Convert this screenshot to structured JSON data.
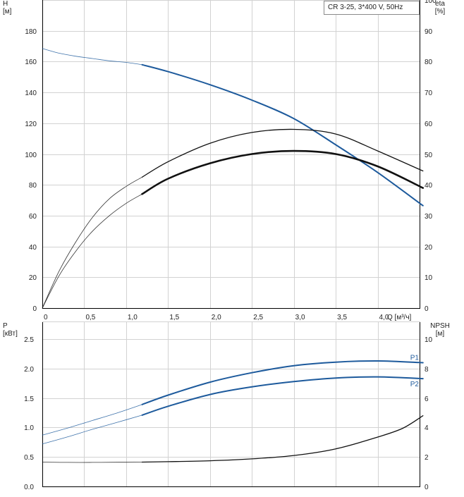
{
  "legend_box": "CR 3-25, 3*400 V, 50Hz",
  "colors": {
    "blue": "#1d5a9c",
    "black": "#111111",
    "grid": "#d2d2d2"
  },
  "chart_data": [
    {
      "type": "line",
      "xlabel": "Q [м³/ч]",
      "ylabel": "H [м]",
      "y2label": "eta [%]",
      "xlim": [
        0,
        4.5
      ],
      "ylim": [
        0,
        200
      ],
      "y2lim": [
        0,
        100
      ],
      "xticks": [
        "0",
        "0,5",
        "1,0",
        "1,5",
        "2,0",
        "2,5",
        "3,0",
        "3,5",
        "4,0"
      ],
      "yticks": [
        "0",
        "20",
        "40",
        "60",
        "80",
        "100",
        "120",
        "140",
        "160",
        "180"
      ],
      "y2ticks": [
        "0",
        "10",
        "20",
        "30",
        "40",
        "50",
        "60",
        "70",
        "80",
        "90",
        "100"
      ],
      "grid": true,
      "series": [
        {
          "color": "blue",
          "axis": "left",
          "thin": [
            [
              0,
              168.5
            ],
            [
              0.2,
              165.5
            ],
            [
              0.4,
              163.5
            ],
            [
              0.6,
              162
            ],
            [
              0.8,
              160.5
            ],
            [
              1.0,
              159.5
            ],
            [
              1.19,
              158
            ]
          ],
          "bold": [
            [
              1.19,
              158
            ],
            [
              1.5,
              153.5
            ],
            [
              2.0,
              145
            ],
            [
              2.5,
              135
            ],
            [
              3.0,
              123
            ],
            [
              3.5,
              106
            ],
            [
              4.0,
              88
            ],
            [
              4.54,
              66.5
            ]
          ]
        },
        {
          "color": "black",
          "axis": "right",
          "thin": [
            [
              0,
              0
            ],
            [
              0.2,
              12
            ],
            [
              0.4,
              21.5
            ],
            [
              0.6,
              29.5
            ],
            [
              0.8,
              35.5
            ],
            [
              1.0,
              39.5
            ],
            [
              1.19,
              42.5
            ]
          ],
          "bold": [
            [
              1.19,
              42.5
            ],
            [
              1.5,
              47.5
            ],
            [
              2.0,
              53.5
            ],
            [
              2.5,
              57
            ],
            [
              3.0,
              58
            ],
            [
              3.5,
              56.5
            ],
            [
              4.0,
              51
            ],
            [
              4.54,
              44.5
            ]
          ]
        },
        {
          "color": "black",
          "axis": "right",
          "weight": "heavy",
          "thin": [
            [
              0,
              0
            ],
            [
              0.2,
              10.5
            ],
            [
              0.4,
              18.5
            ],
            [
              0.6,
              25
            ],
            [
              0.8,
              30
            ],
            [
              1.0,
              34
            ],
            [
              1.19,
              37
            ]
          ],
          "bold": [
            [
              1.19,
              37
            ],
            [
              1.5,
              42
            ],
            [
              2.0,
              47
            ],
            [
              2.5,
              50
            ],
            [
              3.0,
              51
            ],
            [
              3.5,
              50
            ],
            [
              4.0,
              46
            ],
            [
              4.54,
              39
            ]
          ]
        }
      ]
    },
    {
      "type": "line",
      "ylabel": "P [кВт]",
      "y2label": "NPSH [м]",
      "xlim": [
        0,
        4.5
      ],
      "ylim": [
        0,
        2.8
      ],
      "y2lim": [
        0,
        11.2
      ],
      "yticks": [
        "0.0",
        "0.5",
        "1.0",
        "1.5",
        "2.0",
        "2.5"
      ],
      "y2ticks": [
        "0",
        "2",
        "4",
        "6",
        "8",
        "10"
      ],
      "grid": true,
      "series": [
        {
          "name": "P1",
          "color": "blue",
          "axis": "left",
          "thin": [
            [
              0,
              0.87
            ],
            [
              0.3,
              0.99
            ],
            [
              0.6,
              1.12
            ],
            [
              0.9,
              1.25
            ],
            [
              1.19,
              1.39
            ]
          ],
          "bold": [
            [
              1.19,
              1.39
            ],
            [
              1.5,
              1.55
            ],
            [
              2.0,
              1.77
            ],
            [
              2.5,
              1.93
            ],
            [
              3.0,
              2.05
            ],
            [
              3.5,
              2.11
            ],
            [
              4.0,
              2.13
            ],
            [
              4.54,
              2.1
            ]
          ]
        },
        {
          "name": "P2",
          "color": "blue",
          "axis": "left",
          "thin": [
            [
              0,
              0.72
            ],
            [
              0.3,
              0.84
            ],
            [
              0.6,
              0.97
            ],
            [
              0.9,
              1.09
            ],
            [
              1.19,
              1.21
            ]
          ],
          "bold": [
            [
              1.19,
              1.21
            ],
            [
              1.5,
              1.36
            ],
            [
              2.0,
              1.56
            ],
            [
              2.5,
              1.69
            ],
            [
              3.0,
              1.78
            ],
            [
              3.5,
              1.84
            ],
            [
              4.0,
              1.86
            ],
            [
              4.54,
              1.83
            ]
          ]
        },
        {
          "name": "",
          "color": "black",
          "axis": "right",
          "thin": [
            [
              0,
              1.65
            ],
            [
              0.3,
              1.63
            ],
            [
              0.6,
              1.63
            ],
            [
              0.9,
              1.64
            ],
            [
              1.19,
              1.65
            ]
          ],
          "bold": [
            [
              1.19,
              1.65
            ],
            [
              1.5,
              1.68
            ],
            [
              2.0,
              1.74
            ],
            [
              2.5,
              1.87
            ],
            [
              3.0,
              2.1
            ],
            [
              3.5,
              2.55
            ],
            [
              4.0,
              3.35
            ],
            [
              4.3,
              3.95
            ],
            [
              4.54,
              4.8
            ]
          ]
        }
      ]
    }
  ]
}
